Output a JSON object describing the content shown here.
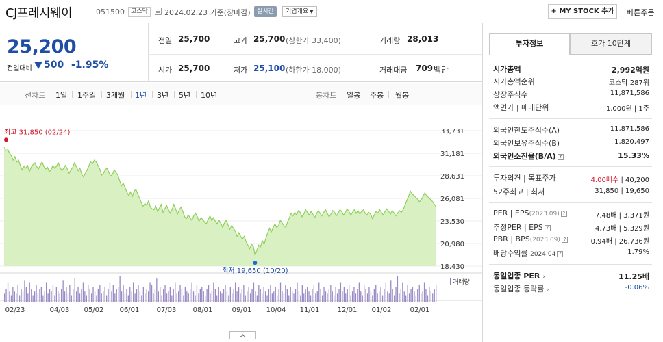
{
  "header": {
    "company_name": "CJ프레시웨이",
    "code": "051500",
    "market": "코스닥",
    "time": "2024.02.23  기준(장마감)",
    "realtime": "실시간",
    "overview": "기업개요",
    "mystock": "MY STOCK 추가",
    "quick_order": "빠른주문"
  },
  "price": {
    "current": "25,200",
    "prev_label": "전일대비",
    "change": "500",
    "change_pct": "-1.95%"
  },
  "stats": {
    "prev_close_label": "전일",
    "prev_close": "25,700",
    "high_label": "고가",
    "high": "25,700",
    "upper_limit": "(상한가 33,400)",
    "volume_label": "거래량",
    "volume": "28,013",
    "open_label": "시가",
    "open": "25,700",
    "low_label": "저가",
    "low": "25,100",
    "lower_limit": "(하한가 18,000)",
    "amount_label": "거래대금",
    "amount": "709",
    "amount_unit": "백만"
  },
  "period_tabs": {
    "line_label": "선차트",
    "items": [
      "1일",
      "1주일",
      "3개월",
      "1년",
      "3년",
      "5년",
      "10년"
    ],
    "active": "1년",
    "candle_label": "봉차트",
    "candle_items": [
      "일봉",
      "주봉",
      "월봉"
    ]
  },
  "chart_data": {
    "type": "area",
    "y_ticks": [
      "33,731",
      "31,181",
      "28,631",
      "26,081",
      "23,530",
      "20,980",
      "18,430"
    ],
    "ylim": [
      18430,
      33731
    ],
    "x_ticks": [
      "02/23",
      "04/03",
      "05/02",
      "06/01",
      "07/03",
      "08/01",
      "09/01",
      "10/04",
      "11/01",
      "12/01",
      "01/02",
      "02/01"
    ],
    "high_label": "최고 31,850 (02/24)",
    "low_label": "최저 19,650 (10/20)",
    "volume_label": "거래량",
    "series": [
      {
        "values": [
          31850,
          31500,
          31600,
          31200,
          30900,
          30400,
          30800,
          30200,
          30400,
          29800,
          29300,
          29700,
          29500,
          29800,
          29100,
          29600,
          29900,
          30100,
          29700,
          29400,
          29800,
          30200,
          29700,
          29400,
          29600,
          29100,
          29300,
          29800,
          29500,
          29700,
          30100,
          29600,
          29200,
          29500,
          29800,
          29400,
          28900,
          29300,
          29600,
          30100,
          29700,
          29200,
          29500,
          28800,
          28500,
          28900,
          29300,
          29800,
          30200,
          30000,
          30400,
          30200,
          29800,
          29400,
          28700,
          28900,
          29300,
          29500,
          29000,
          28600,
          28800,
          29300,
          29000,
          28700,
          28100,
          27500,
          27800,
          27300,
          26800,
          26400,
          26800,
          26300,
          26900,
          27100,
          26600,
          26100,
          25600,
          25200,
          25500,
          25300,
          25800,
          25100,
          24900,
          24800,
          25200,
          24600,
          25000,
          25400,
          24500,
          24900,
          25300,
          24800,
          24400,
          24800,
          25400,
          24900,
          24300,
          24800,
          25100,
          24600,
          24000,
          23800,
          24200,
          23900,
          23600,
          24100,
          24400,
          24000,
          23500,
          23900,
          23700,
          23400,
          23200,
          23700,
          24100,
          23600,
          23900,
          23500,
          23200,
          23600,
          23300,
          22800,
          23300,
          23600,
          23100,
          22600,
          23000,
          22700,
          22400,
          21800,
          22200,
          21800,
          21500,
          21800,
          21200,
          20800,
          20400,
          20900,
          20700,
          19650,
          20200,
          20800,
          20600,
          21300,
          20900,
          21600,
          22200,
          22700,
          22300,
          22800,
          23200,
          22800,
          23000,
          23600,
          23300,
          23000,
          22800,
          23400,
          23900,
          24400,
          24100,
          24500,
          24200,
          24700,
          24500,
          24000,
          24300,
          24800,
          24500,
          24200,
          24600,
          24300,
          23900,
          24300,
          24700,
          24400,
          24100,
          24500,
          24800,
          24400,
          24000,
          24300,
          24700,
          24500,
          24100,
          24400,
          24800,
          24600,
          24200,
          24500,
          24900,
          24600,
          24200,
          24500,
          24800,
          24400,
          24700,
          24300,
          24600,
          24800,
          24400,
          24200,
          24500,
          24300,
          23800,
          24200,
          24600,
          24400,
          24800,
          24500,
          24200,
          24600,
          24900,
          24600,
          24300,
          24700,
          24400,
          24100,
          24400,
          24700,
          24500,
          24800,
          25300,
          25800,
          26300,
          26900,
          26600,
          26400,
          26200,
          26000,
          25700,
          25900,
          26300,
          26700,
          26400,
          26200,
          26000,
          25800,
          25500,
          25200
        ]
      }
    ],
    "volume_values": [
      4,
      6,
      9,
      5,
      3,
      7,
      5,
      4,
      8,
      3,
      6,
      5,
      10,
      7,
      4,
      9,
      6,
      3,
      5,
      8,
      4,
      6,
      7,
      3,
      5,
      9,
      4,
      6,
      5,
      8,
      3,
      7,
      5,
      4,
      6,
      10,
      5,
      7,
      4,
      8,
      3,
      6,
      11,
      5,
      7,
      4,
      6,
      9,
      5,
      3,
      8,
      6,
      4,
      7,
      5,
      3,
      6,
      8,
      4,
      5,
      7,
      3,
      6,
      9,
      5,
      8,
      4,
      6,
      7,
      12,
      5,
      8,
      4,
      6,
      3,
      7,
      5,
      9,
      4,
      6,
      8,
      5,
      3,
      7,
      4,
      6,
      5,
      9,
      8,
      4,
      6,
      11,
      5,
      7,
      3,
      6,
      8,
      4,
      5,
      7,
      3,
      6,
      9,
      4,
      5,
      8,
      6,
      3,
      7,
      5,
      4,
      6,
      9,
      5,
      3,
      8,
      4,
      6,
      7,
      5,
      3,
      6,
      8,
      4,
      5,
      9,
      6,
      3,
      7,
      5,
      4,
      6,
      8,
      5,
      3,
      7,
      4,
      6,
      9,
      5,
      7,
      4,
      6,
      8,
      3,
      5,
      7,
      4,
      6,
      9,
      5,
      3,
      8,
      6,
      4,
      7,
      5,
      3,
      6,
      8,
      4,
      5,
      7,
      3,
      6,
      9,
      5,
      4,
      8,
      6,
      3,
      7,
      5,
      4,
      6,
      9,
      5,
      3,
      8,
      4,
      6,
      7,
      5,
      3,
      6,
      8,
      4,
      5,
      9,
      6,
      3,
      7,
      5,
      4,
      6,
      8,
      5,
      3,
      7,
      4,
      6,
      9,
      5,
      7,
      4,
      6,
      8,
      3,
      5,
      7,
      4,
      6,
      9,
      5,
      3,
      8,
      6,
      4,
      7,
      5,
      3,
      6,
      8,
      4,
      5,
      7,
      3,
      6,
      9,
      5,
      4,
      10,
      6,
      3,
      7,
      12,
      4,
      6,
      9,
      5,
      3,
      8,
      4,
      6,
      7,
      5,
      3,
      6,
      8,
      4,
      5,
      9,
      6,
      3,
      7,
      5,
      4,
      6,
      8
    ],
    "line_color": "#8fcf5a",
    "fill_color": "#d9f0c2"
  },
  "right_panel": {
    "tab_invest": "투자정보",
    "tab_hoga": "호가 10단계",
    "mcap_label": "시가총액",
    "mcap": "2,992억원",
    "mcap_rank_label": "시가총액순위",
    "mcap_rank": "코스닥 287위",
    "shares_label": "상장주식수",
    "shares": "11,871,586",
    "par_label": "액면가 | 매매단위",
    "par": "1,000원  |  1주",
    "foreign_limit_label": "외국인한도주식수(A)",
    "foreign_limit": "11,871,586",
    "foreign_hold_label": "외국인보유주식수(B)",
    "foreign_hold": "1,820,497",
    "foreign_ratio_label": "외국인소진율(B/A)",
    "foreign_ratio": "15.33%",
    "opinion_label": "투자의견  |  목표주가",
    "opinion": "4.00매수",
    "target": "40,200",
    "week52_label": "52주최고  |  최저",
    "week52": "31,850  |  19,650",
    "per_label": "PER  |  EPS",
    "per_date": "(2023.09)",
    "per": "7.48배  |  3,371원",
    "est_per_label": "추정PER  |  EPS",
    "est_per": "4.73배  |  5,329원",
    "pbr_label": "PBR  |  BPS",
    "pbr_date": "(2023.09)",
    "pbr": "0.94배  |  26,736원",
    "div_label": "배당수익률",
    "div_date": "2024.04",
    "div": "1.79%",
    "ind_per_label": "동일업종 PER",
    "ind_per": "11.25배",
    "ind_rate_label": "동일업종 등락률",
    "ind_rate": "-0.06%"
  },
  "collapse": "︿"
}
